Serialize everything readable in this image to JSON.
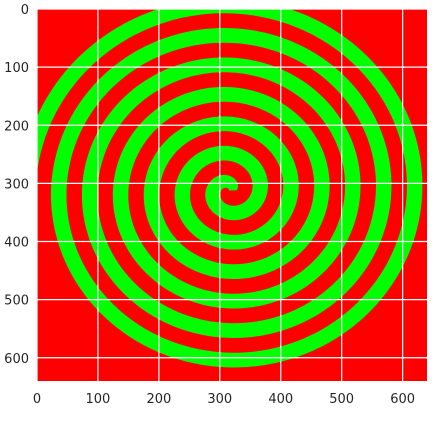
{
  "chart_data": {
    "type": "heatmap",
    "title": "",
    "xlabel": "",
    "ylabel": "",
    "xlim": [
      0,
      640
    ],
    "ylim": [
      640,
      0
    ],
    "x_ticks": [
      0,
      100,
      200,
      300,
      400,
      500,
      600
    ],
    "y_ticks": [
      0,
      100,
      200,
      300,
      400,
      500,
      600
    ],
    "grid": true,
    "image": {
      "description": "Archimedean spiral band on background",
      "center": [
        315,
        312
      ],
      "spiral_start_angle_deg": 0,
      "spiral_turns": 6.5,
      "outer_radius": 330,
      "band_color": "#00ff00",
      "background_color": "#ff0000"
    }
  },
  "colors": {
    "background": "#ff0000",
    "spiral": "#00ff00",
    "grid": "#ffffff",
    "axes_bg": "#eaeaf2"
  }
}
